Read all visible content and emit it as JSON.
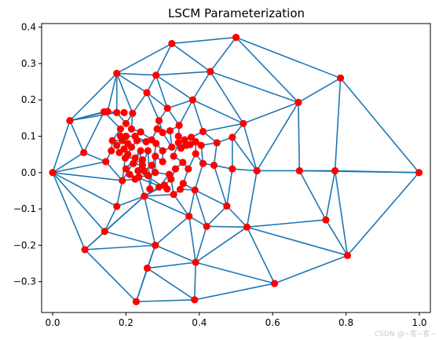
{
  "chart_data": {
    "type": "line",
    "title": "LSCM Parameterization",
    "xlim": [
      -0.03,
      1.03
    ],
    "ylim": [
      -0.385,
      0.41
    ],
    "x_ticks": [
      0.0,
      0.2,
      0.4,
      0.6,
      0.8,
      1.0
    ],
    "x_tick_labels": [
      "0.0",
      "0.2",
      "0.4",
      "0.6",
      "0.8",
      "1.0"
    ],
    "y_ticks": [
      -0.3,
      -0.2,
      -0.1,
      0.0,
      0.1,
      0.2,
      0.3,
      0.4
    ],
    "y_tick_labels": [
      "−0.3",
      "−0.2",
      "−0.1",
      "0.0",
      "0.1",
      "0.2",
      "0.3",
      "0.4"
    ],
    "edge_color": "#1f77b4",
    "vertex_color": "#ff0000",
    "grid": false,
    "vertices": [
      [
        0.0,
        0.0
      ],
      [
        0.047,
        0.143
      ],
      [
        0.088,
        -0.212
      ],
      [
        0.142,
        -0.162
      ],
      [
        0.14,
        0.167
      ],
      [
        0.175,
        0.273
      ],
      [
        0.228,
        -0.355
      ],
      [
        0.325,
        0.355
      ],
      [
        0.5,
        0.372
      ],
      [
        0.387,
        -0.35
      ],
      [
        0.605,
        -0.305
      ],
      [
        0.804,
        -0.228
      ],
      [
        0.999,
        0.0
      ],
      [
        0.785,
        0.26
      ],
      [
        0.67,
        0.193
      ],
      [
        0.282,
        0.268
      ],
      [
        0.43,
        0.278
      ],
      [
        0.382,
        0.2
      ],
      [
        0.52,
        0.135
      ],
      [
        0.257,
        0.22
      ],
      [
        0.313,
        0.177
      ],
      [
        0.15,
        0.168
      ],
      [
        0.175,
        0.165
      ],
      [
        0.218,
        0.163
      ],
      [
        0.29,
        0.143
      ],
      [
        0.085,
        0.055
      ],
      [
        0.145,
        0.03
      ],
      [
        0.19,
        -0.022
      ],
      [
        0.25,
        -0.065
      ],
      [
        0.175,
        -0.093
      ],
      [
        0.28,
        -0.2
      ],
      [
        0.258,
        -0.263
      ],
      [
        0.39,
        -0.247
      ],
      [
        0.372,
        -0.12
      ],
      [
        0.42,
        -0.148
      ],
      [
        0.475,
        -0.092
      ],
      [
        0.53,
        -0.15
      ],
      [
        0.745,
        -0.13
      ],
      [
        0.673,
        0.005
      ],
      [
        0.77,
        0.005
      ],
      [
        0.557,
        0.005
      ],
      [
        0.49,
        0.01
      ],
      [
        0.44,
        0.02
      ],
      [
        0.49,
        0.097
      ],
      [
        0.448,
        0.082
      ],
      [
        0.41,
        0.113
      ],
      [
        0.405,
        0.075
      ],
      [
        0.41,
        0.025
      ],
      [
        0.39,
        0.052
      ],
      [
        0.388,
        -0.048
      ],
      [
        0.356,
        -0.03
      ],
      [
        0.348,
        -0.046
      ],
      [
        0.33,
        -0.06
      ],
      [
        0.323,
        -0.018
      ],
      [
        0.305,
        -0.035
      ],
      [
        0.335,
        0.01
      ],
      [
        0.355,
        0.028
      ],
      [
        0.37,
        0.01
      ],
      [
        0.35,
        0.067
      ],
      [
        0.36,
        0.09
      ],
      [
        0.378,
        0.097
      ],
      [
        0.39,
        0.085
      ],
      [
        0.343,
        0.1
      ],
      [
        0.345,
        0.13
      ],
      [
        0.365,
        0.075
      ],
      [
        0.375,
        0.077
      ],
      [
        0.32,
        0.115
      ],
      [
        0.325,
        0.07
      ],
      [
        0.285,
        0.12
      ],
      [
        0.3,
        0.11
      ],
      [
        0.282,
        0.08
      ],
      [
        0.27,
        0.09
      ],
      [
        0.255,
        0.085
      ],
      [
        0.24,
        0.112
      ],
      [
        0.225,
        0.1
      ],
      [
        0.215,
        0.12
      ],
      [
        0.2,
        0.135
      ],
      [
        0.185,
        0.12
      ],
      [
        0.163,
        0.088
      ],
      [
        0.175,
        0.075
      ],
      [
        0.19,
        0.088
      ],
      [
        0.205,
        0.08
      ],
      [
        0.195,
        0.065
      ],
      [
        0.16,
        0.06
      ],
      [
        0.182,
        0.055
      ],
      [
        0.205,
        0.05
      ],
      [
        0.215,
        0.07
      ],
      [
        0.198,
        0.04
      ],
      [
        0.225,
        0.04
      ],
      [
        0.22,
        0.025
      ],
      [
        0.185,
        0.1
      ],
      [
        0.2,
        0.1
      ],
      [
        0.23,
        0.088
      ],
      [
        0.26,
        0.06
      ],
      [
        0.28,
        0.045
      ],
      [
        0.245,
        0.02
      ],
      [
        0.27,
        0.02
      ],
      [
        0.28,
        0.0
      ],
      [
        0.3,
        0.06
      ],
      [
        0.3,
        0.03
      ],
      [
        0.245,
        0.035
      ],
      [
        0.233,
        0.005
      ],
      [
        0.25,
        0.005
      ],
      [
        0.26,
        -0.008
      ],
      [
        0.235,
        -0.012
      ],
      [
        0.265,
        -0.045
      ],
      [
        0.24,
        0.06
      ],
      [
        0.225,
        -0.018
      ],
      [
        0.21,
        -0.005
      ],
      [
        0.318,
        -0.005
      ],
      [
        0.29,
        -0.04
      ],
      [
        0.312,
        -0.045
      ],
      [
        0.343,
        0.082
      ],
      [
        0.33,
        0.045
      ],
      [
        0.2,
        0.01
      ],
      [
        0.195,
        0.165
      ]
    ],
    "edges": [
      [
        0,
        1
      ],
      [
        0,
        25
      ],
      [
        0,
        26
      ],
      [
        0,
        27
      ],
      [
        0,
        29
      ],
      [
        0,
        3
      ],
      [
        0,
        2
      ],
      [
        1,
        25
      ],
      [
        1,
        4
      ],
      [
        1,
        5
      ],
      [
        1,
        21
      ],
      [
        1,
        22
      ],
      [
        2,
        3
      ],
      [
        2,
        6
      ],
      [
        2,
        30
      ],
      [
        2,
        28
      ],
      [
        3,
        29
      ],
      [
        3,
        28
      ],
      [
        3,
        30
      ],
      [
        6,
        31
      ],
      [
        6,
        9
      ],
      [
        6,
        30
      ],
      [
        31,
        30
      ],
      [
        31,
        9
      ],
      [
        31,
        32
      ],
      [
        30,
        32
      ],
      [
        30,
        33
      ],
      [
        30,
        28
      ],
      [
        9,
        32
      ],
      [
        9,
        10
      ],
      [
        32,
        10
      ],
      [
        32,
        34
      ],
      [
        32,
        33
      ],
      [
        32,
        36
      ],
      [
        10,
        36
      ],
      [
        10,
        11
      ],
      [
        11,
        36
      ],
      [
        11,
        37
      ],
      [
        11,
        39
      ],
      [
        11,
        12
      ],
      [
        12,
        39
      ],
      [
        12,
        13
      ],
      [
        12,
        38
      ],
      [
        13,
        39
      ],
      [
        13,
        14
      ],
      [
        13,
        8
      ],
      [
        14,
        8
      ],
      [
        14,
        16
      ],
      [
        14,
        18
      ],
      [
        14,
        38
      ],
      [
        14,
        40
      ],
      [
        8,
        7
      ],
      [
        8,
        16
      ],
      [
        7,
        5
      ],
      [
        7,
        15
      ],
      [
        7,
        16
      ],
      [
        16,
        17
      ],
      [
        16,
        18
      ],
      [
        16,
        15
      ],
      [
        15,
        5
      ],
      [
        15,
        19
      ],
      [
        15,
        20
      ],
      [
        15,
        17
      ],
      [
        5,
        22
      ],
      [
        5,
        21
      ],
      [
        5,
        19
      ],
      [
        5,
        23
      ],
      [
        17,
        20
      ],
      [
        17,
        63
      ],
      [
        17,
        45
      ],
      [
        17,
        18
      ],
      [
        18,
        43
      ],
      [
        18,
        40
      ],
      [
        18,
        45
      ],
      [
        39,
        38
      ],
      [
        39,
        37
      ],
      [
        38,
        37
      ],
      [
        37,
        36
      ],
      [
        36,
        40
      ],
      [
        36,
        35
      ],
      [
        36,
        34
      ],
      [
        38,
        40
      ],
      [
        40,
        41
      ],
      [
        40,
        43
      ],
      [
        41,
        43
      ],
      [
        41,
        42
      ],
      [
        41,
        35
      ],
      [
        42,
        44
      ],
      [
        42,
        47
      ],
      [
        42,
        35
      ],
      [
        43,
        44
      ],
      [
        44,
        45
      ],
      [
        44,
        46
      ],
      [
        45,
        60
      ],
      [
        46,
        47
      ],
      [
        46,
        61
      ],
      [
        47,
        48
      ],
      [
        47,
        49
      ],
      [
        35,
        49
      ],
      [
        35,
        34
      ],
      [
        34,
        33
      ],
      [
        34,
        49
      ],
      [
        33,
        52
      ],
      [
        33,
        28
      ],
      [
        33,
        49
      ],
      [
        49,
        51
      ],
      [
        49,
        50
      ],
      [
        50,
        51
      ],
      [
        51,
        52
      ],
      [
        52,
        53
      ],
      [
        52,
        28
      ],
      [
        53,
        54
      ],
      [
        54,
        28
      ],
      [
        54,
        110
      ],
      [
        53,
        55
      ],
      [
        55,
        56
      ],
      [
        56,
        57
      ],
      [
        57,
        50
      ],
      [
        57,
        48
      ],
      [
        48,
        61
      ],
      [
        61,
        60
      ],
      [
        60,
        59
      ],
      [
        59,
        58
      ],
      [
        58,
        64
      ],
      [
        64,
        65
      ],
      [
        65,
        61
      ],
      [
        59,
        62
      ],
      [
        62,
        63
      ],
      [
        63,
        20
      ],
      [
        63,
        66
      ],
      [
        66,
        69
      ],
      [
        69,
        24
      ],
      [
        24,
        20
      ],
      [
        24,
        19
      ],
      [
        24,
        68
      ],
      [
        68,
        71
      ],
      [
        71,
        73
      ],
      [
        73,
        75
      ],
      [
        75,
        23
      ],
      [
        23,
        19
      ],
      [
        19,
        20
      ],
      [
        23,
        76
      ],
      [
        76,
        22
      ],
      [
        22,
        21
      ],
      [
        21,
        4
      ],
      [
        4,
        25
      ],
      [
        4,
        77
      ],
      [
        77,
        78
      ],
      [
        78,
        83
      ],
      [
        83,
        26
      ],
      [
        26,
        25
      ],
      [
        26,
        27
      ],
      [
        27,
        29
      ],
      [
        27,
        87
      ],
      [
        29,
        28
      ],
      [
        28,
        104
      ],
      [
        104,
        106
      ],
      [
        106,
        27
      ],
      [
        27,
        107
      ],
      [
        107,
        108
      ],
      [
        108,
        111
      ],
      [
        111,
        101
      ],
      [
        101,
        104
      ],
      [
        28,
        110
      ],
      [
        110,
        109
      ],
      [
        109,
        97
      ],
      [
        97,
        96
      ],
      [
        96,
        102
      ],
      [
        102,
        103
      ],
      [
        103,
        104
      ],
      [
        80,
        81
      ],
      [
        81,
        82
      ],
      [
        82,
        84
      ],
      [
        84,
        79
      ],
      [
        79,
        78
      ],
      [
        78,
        80
      ],
      [
        80,
        90
      ],
      [
        90,
        91
      ],
      [
        91,
        74
      ],
      [
        74,
        72
      ],
      [
        72,
        92
      ],
      [
        92,
        86
      ],
      [
        86,
        85
      ],
      [
        85,
        87
      ],
      [
        87,
        88
      ],
      [
        88,
        89
      ],
      [
        89,
        95
      ],
      [
        95,
        93
      ],
      [
        93,
        105
      ],
      [
        105,
        70
      ],
      [
        70,
        98
      ],
      [
        98,
        99
      ],
      [
        99,
        94
      ],
      [
        94,
        97
      ],
      [
        112,
        113
      ],
      [
        113,
        56
      ],
      [
        112,
        58
      ],
      [
        67,
        98
      ],
      [
        67,
        69
      ],
      [
        66,
        67
      ],
      [
        100,
        101
      ],
      [
        100,
        89
      ],
      [
        114,
        88
      ],
      [
        114,
        106
      ]
    ]
  },
  "watermark": "CSDN @~客~客~"
}
